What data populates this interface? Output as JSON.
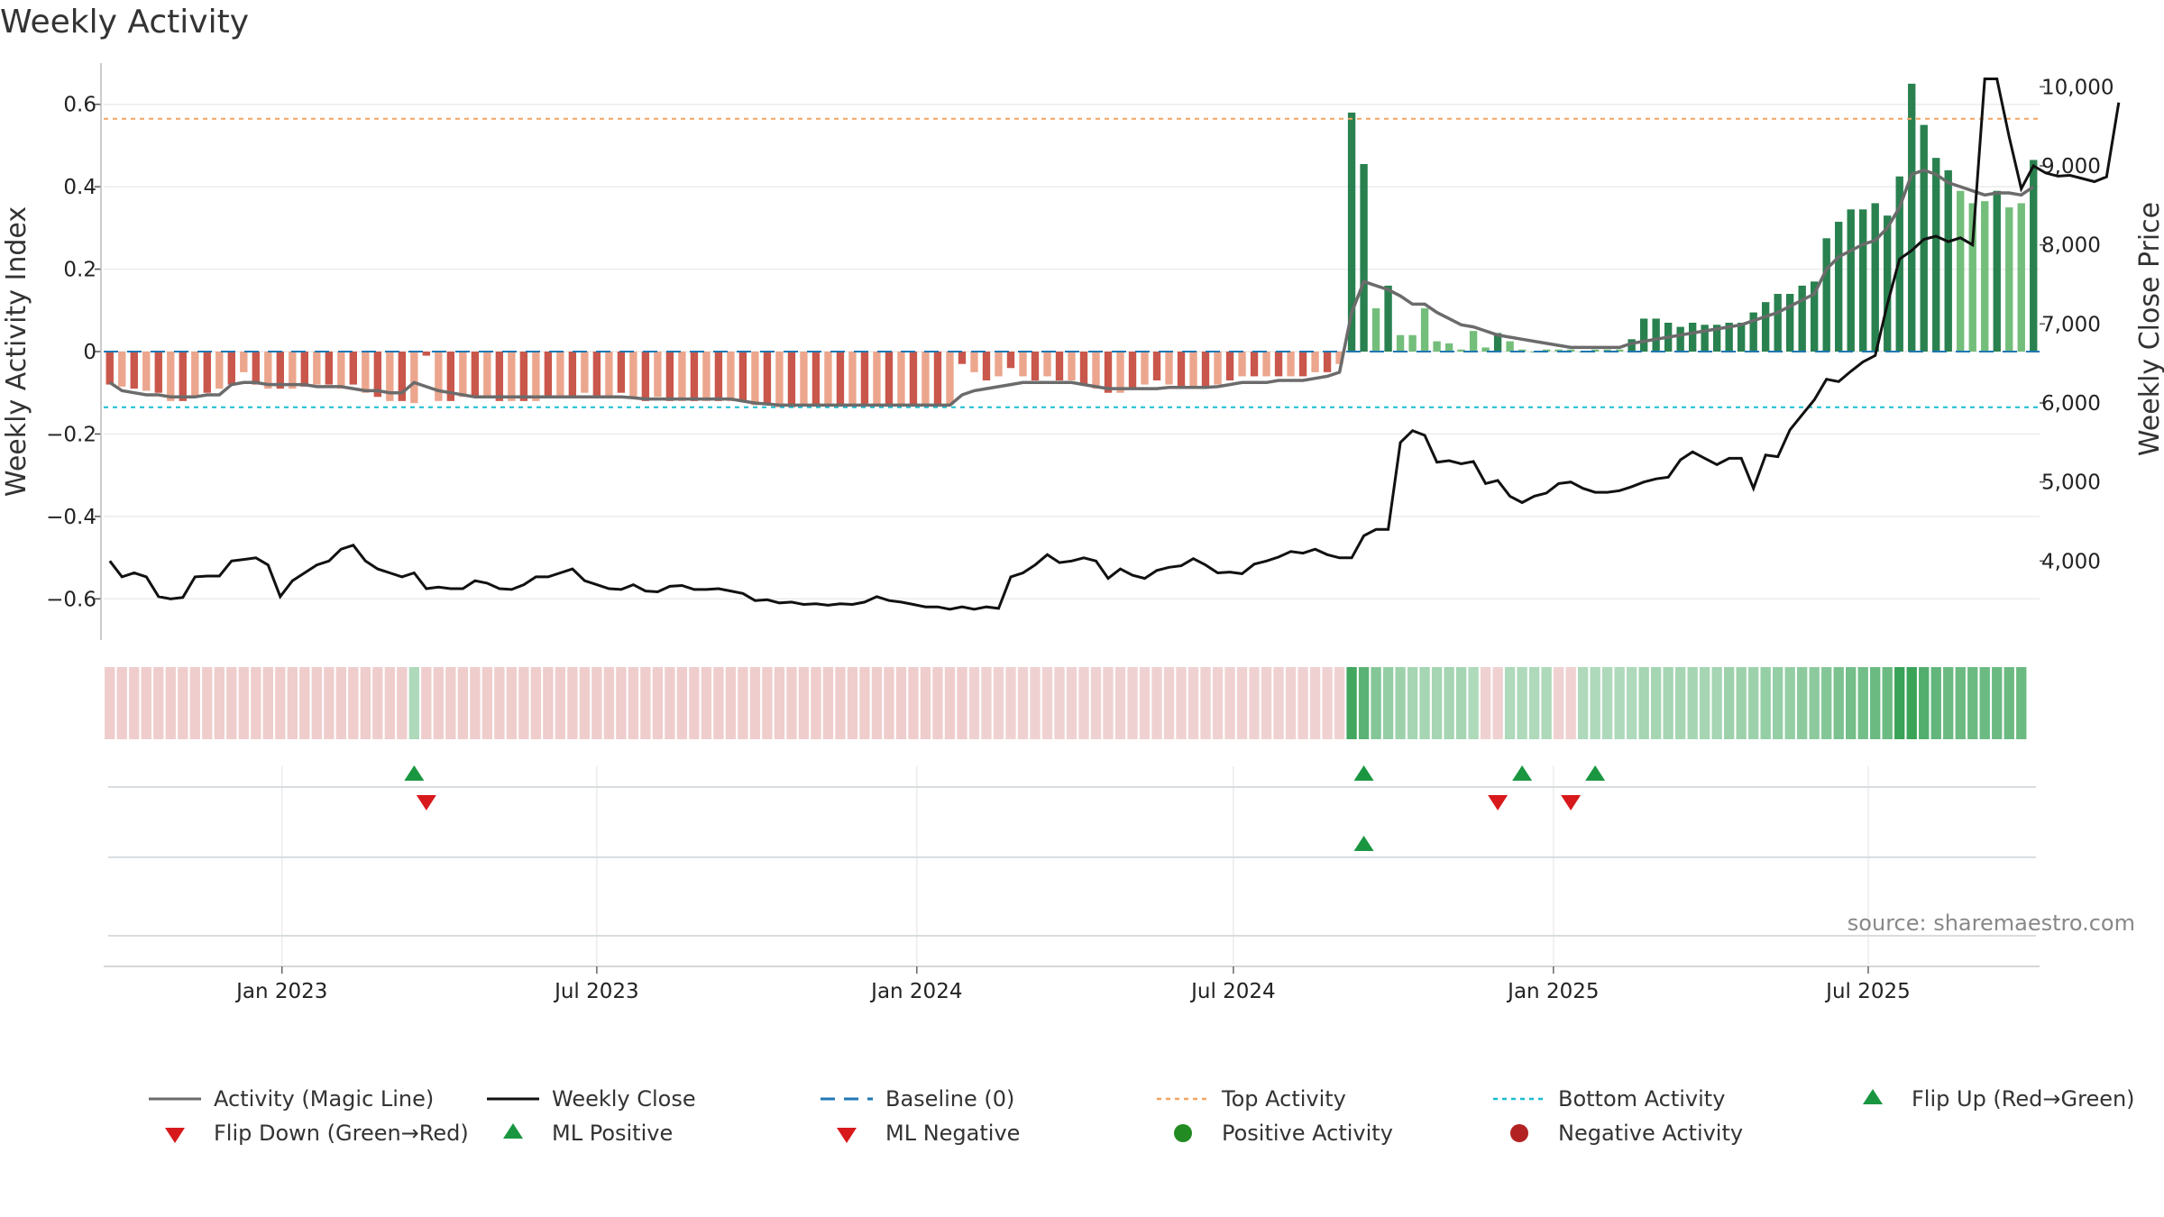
{
  "title": "Weekly Activity",
  "source": "source: sharemaestro.com",
  "chart_data": {
    "type": "bar",
    "title": "Weekly Activity",
    "ylabel_left": "Weekly Activity Index",
    "ylabel_right": "Weekly Close Price",
    "ylim_left": [
      -0.7,
      0.7
    ],
    "ylim_right": [
      3000,
      10300
    ],
    "yticks_left": [
      "0.6",
      "0.4",
      "0.2",
      "0",
      "−0.2",
      "−0.4",
      "−0.6"
    ],
    "yticks_right": [
      "10,000",
      "9,000",
      "8,000",
      "7,000",
      "6,000",
      "5,000",
      "4,000"
    ],
    "xticks": [
      "Jan 2023",
      "Jul 2023",
      "Jan 2024",
      "Jul 2024",
      "Jan 2025",
      "Jul 2025"
    ],
    "top_activity": 0.565,
    "bottom_activity": -0.135,
    "baseline": 0,
    "grid": true,
    "legend_position": "bottom",
    "colors": {
      "neg_dark": "#c0392b",
      "neg_light": "#e9967a",
      "pos_dark": "#1e7a46",
      "pos_light": "#6dbb74",
      "magic_line": "#6b6b6b",
      "close": "#111111",
      "baseline": "#1f77b4",
      "top": "#f4a460",
      "bottom": "#17becf",
      "marker_up": "#1a9641",
      "marker_down": "#d7191c"
    },
    "start_week": "2022-09-24",
    "activity": [
      -0.08,
      -0.085,
      -0.09,
      -0.095,
      -0.1,
      -0.12,
      -0.12,
      -0.11,
      -0.1,
      -0.09,
      -0.08,
      -0.05,
      -0.08,
      -0.09,
      -0.09,
      -0.09,
      -0.085,
      -0.08,
      -0.08,
      -0.09,
      -0.08,
      -0.1,
      -0.11,
      -0.12,
      -0.12,
      -0.125,
      -0.01,
      -0.12,
      -0.12,
      -0.11,
      -0.11,
      -0.11,
      -0.12,
      -0.12,
      -0.12,
      -0.12,
      -0.11,
      -0.11,
      -0.11,
      -0.1,
      -0.11,
      -0.11,
      -0.1,
      -0.11,
      -0.12,
      -0.11,
      -0.12,
      -0.12,
      -0.12,
      -0.12,
      -0.12,
      -0.12,
      -0.12,
      -0.13,
      -0.13,
      -0.135,
      -0.135,
      -0.13,
      -0.13,
      -0.13,
      -0.13,
      -0.13,
      -0.13,
      -0.13,
      -0.13,
      -0.13,
      -0.13,
      -0.13,
      -0.13,
      -0.13,
      -0.03,
      -0.05,
      -0.07,
      -0.06,
      -0.04,
      -0.06,
      -0.07,
      -0.06,
      -0.07,
      -0.07,
      -0.08,
      -0.09,
      -0.1,
      -0.1,
      -0.09,
      -0.08,
      -0.07,
      -0.08,
      -0.09,
      -0.09,
      -0.09,
      -0.08,
      -0.07,
      -0.06,
      -0.06,
      -0.06,
      -0.06,
      -0.06,
      -0.06,
      -0.05,
      -0.05,
      -0.03,
      0.58,
      0.455,
      0.105,
      0.16,
      0.04,
      0.04,
      0.105,
      0.025,
      0.02,
      0.005,
      0.05,
      0.01,
      0.045,
      0.025,
      0.005,
      0.0,
      0.005,
      0.005,
      0.005,
      0.0,
      0.005,
      0.005,
      0.005,
      0.03,
      0.08,
      0.08,
      0.07,
      0.06,
      0.07,
      0.065,
      0.065,
      0.07,
      0.07,
      0.095,
      0.12,
      0.14,
      0.14,
      0.16,
      0.17,
      0.275,
      0.315,
      0.345,
      0.345,
      0.36,
      0.33,
      0.425,
      0.65,
      0.55,
      0.47,
      0.44,
      0.39,
      0.36,
      0.365,
      0.39,
      0.35,
      0.36,
      0.465
    ],
    "magic_line": [
      -0.075,
      -0.095,
      -0.1,
      -0.105,
      -0.105,
      -0.11,
      -0.11,
      -0.11,
      -0.105,
      -0.105,
      -0.08,
      -0.075,
      -0.075,
      -0.08,
      -0.08,
      -0.08,
      -0.08,
      -0.085,
      -0.085,
      -0.085,
      -0.09,
      -0.095,
      -0.095,
      -0.1,
      -0.1,
      -0.075,
      -0.085,
      -0.095,
      -0.1,
      -0.105,
      -0.11,
      -0.11,
      -0.11,
      -0.11,
      -0.11,
      -0.11,
      -0.11,
      -0.11,
      -0.11,
      -0.11,
      -0.11,
      -0.11,
      -0.11,
      -0.112,
      -0.115,
      -0.115,
      -0.115,
      -0.115,
      -0.115,
      -0.115,
      -0.115,
      -0.115,
      -0.12,
      -0.125,
      -0.127,
      -0.13,
      -0.13,
      -0.13,
      -0.13,
      -0.13,
      -0.13,
      -0.13,
      -0.13,
      -0.13,
      -0.13,
      -0.13,
      -0.13,
      -0.13,
      -0.13,
      -0.13,
      -0.105,
      -0.095,
      -0.09,
      -0.085,
      -0.08,
      -0.075,
      -0.075,
      -0.075,
      -0.075,
      -0.075,
      -0.08,
      -0.085,
      -0.09,
      -0.09,
      -0.09,
      -0.09,
      -0.09,
      -0.087,
      -0.087,
      -0.087,
      -0.087,
      -0.085,
      -0.08,
      -0.075,
      -0.075,
      -0.075,
      -0.07,
      -0.07,
      -0.07,
      -0.065,
      -0.06,
      -0.05,
      0.095,
      0.17,
      0.16,
      0.15,
      0.135,
      0.115,
      0.115,
      0.095,
      0.08,
      0.065,
      0.06,
      0.05,
      0.04,
      0.035,
      0.03,
      0.025,
      0.02,
      0.015,
      0.01,
      0.01,
      0.01,
      0.01,
      0.01,
      0.02,
      0.025,
      0.03,
      0.035,
      0.04,
      0.045,
      0.05,
      0.055,
      0.06,
      0.065,
      0.075,
      0.085,
      0.095,
      0.11,
      0.125,
      0.14,
      0.2,
      0.23,
      0.245,
      0.26,
      0.27,
      0.3,
      0.35,
      0.43,
      0.44,
      0.43,
      0.41,
      0.4,
      0.39,
      0.38,
      0.385,
      0.385,
      0.38,
      0.4
    ],
    "close": [
      4000,
      3800,
      3850,
      3800,
      3550,
      3520,
      3540,
      3800,
      3810,
      3810,
      4000,
      4020,
      4040,
      3950,
      3550,
      3750,
      3850,
      3950,
      4000,
      4150,
      4200,
      4000,
      3900,
      3850,
      3800,
      3850,
      3650,
      3670,
      3650,
      3650,
      3750,
      3720,
      3650,
      3640,
      3700,
      3800,
      3800,
      3850,
      3900,
      3750,
      3700,
      3650,
      3640,
      3700,
      3620,
      3610,
      3680,
      3690,
      3640,
      3640,
      3650,
      3620,
      3590,
      3500,
      3510,
      3470,
      3480,
      3450,
      3460,
      3440,
      3460,
      3450,
      3480,
      3550,
      3500,
      3480,
      3450,
      3420,
      3420,
      3390,
      3420,
      3390,
      3420,
      3400,
      3800,
      3850,
      3950,
      4080,
      3980,
      4000,
      4040,
      4000,
      3780,
      3900,
      3820,
      3780,
      3880,
      3920,
      3940,
      4030,
      3950,
      3850,
      3860,
      3840,
      3960,
      4000,
      4050,
      4120,
      4100,
      4150,
      4080,
      4040,
      4040,
      4320,
      4400,
      4400,
      5500,
      5650,
      5590,
      5250,
      5270,
      5230,
      5260,
      4980,
      5020,
      4820,
      4740,
      4820,
      4860,
      4980,
      5000,
      4920,
      4870,
      4870,
      4890,
      4940,
      5000,
      5040,
      5060,
      5280,
      5380,
      5300,
      5220,
      5300,
      5300,
      4920,
      5340,
      5320,
      5660,
      5850,
      6040,
      6300,
      6270,
      6400,
      6520,
      6600,
      7250,
      7820,
      7930,
      8070,
      8110,
      8040,
      8090,
      8000,
      10100,
      10100,
      9370,
      8710,
      9000,
      8910,
      8870,
      8880,
      8840,
      8800,
      8860,
      9800
    ],
    "strip_intensity": [
      -0.5,
      -0.5,
      -0.5,
      -0.5,
      -0.5,
      -0.5,
      -0.5,
      -0.5,
      -0.5,
      -0.5,
      -0.5,
      -0.5,
      -0.5,
      -0.5,
      -0.5,
      -0.5,
      -0.5,
      -0.5,
      -0.5,
      -0.5,
      -0.5,
      -0.5,
      -0.5,
      -0.5,
      -0.5,
      0.3,
      -0.5,
      -0.5,
      -0.5,
      -0.5,
      -0.5,
      -0.5,
      -0.5,
      -0.5,
      -0.5,
      -0.5,
      -0.5,
      -0.5,
      -0.5,
      -0.5,
      -0.5,
      -0.5,
      -0.5,
      -0.5,
      -0.5,
      -0.5,
      -0.5,
      -0.5,
      -0.5,
      -0.5,
      -0.5,
      -0.5,
      -0.5,
      -0.5,
      -0.5,
      -0.5,
      -0.5,
      -0.5,
      -0.5,
      -0.5,
      -0.5,
      -0.5,
      -0.5,
      -0.5,
      -0.5,
      -0.5,
      -0.5,
      -0.5,
      -0.5,
      -0.5,
      -0.5,
      -0.4,
      -0.4,
      -0.4,
      -0.4,
      -0.4,
      -0.4,
      -0.4,
      -0.4,
      -0.4,
      -0.4,
      -0.4,
      -0.4,
      -0.4,
      -0.4,
      -0.4,
      -0.4,
      -0.4,
      -0.4,
      -0.4,
      -0.4,
      -0.4,
      -0.4,
      -0.4,
      -0.4,
      -0.4,
      -0.4,
      -0.4,
      -0.4,
      -0.4,
      -0.4,
      -0.4,
      0.95,
      0.8,
      0.55,
      0.45,
      0.4,
      0.35,
      0.35,
      0.35,
      0.35,
      0.35,
      0.3,
      -0.4,
      -0.4,
      0.3,
      0.3,
      0.3,
      0.3,
      -0.4,
      -0.4,
      0.3,
      0.3,
      0.3,
      0.3,
      0.3,
      0.35,
      0.35,
      0.35,
      0.35,
      0.35,
      0.35,
      0.35,
      0.4,
      0.4,
      0.4,
      0.45,
      0.45,
      0.45,
      0.5,
      0.5,
      0.55,
      0.6,
      0.65,
      0.65,
      0.7,
      0.7,
      1.0,
      1.0,
      0.85,
      0.75,
      0.7,
      0.7,
      0.7,
      0.7,
      0.7,
      0.7,
      0.7
    ],
    "flip_up": [
      25,
      103,
      116,
      122
    ],
    "flip_down": [
      26,
      114,
      120
    ],
    "ml_positive": [
      103
    ],
    "ml_negative": [],
    "positive_activity": [],
    "negative_activity": [],
    "legend": [
      "Activity (Magic Line)",
      "Weekly Close",
      "Baseline (0)",
      "Top Activity",
      "Bottom Activity",
      "Flip Up (Red→Green)",
      "Flip Down (Green→Red)",
      "ML Positive",
      "ML Negative",
      "Positive Activity",
      "Negative Activity"
    ]
  }
}
